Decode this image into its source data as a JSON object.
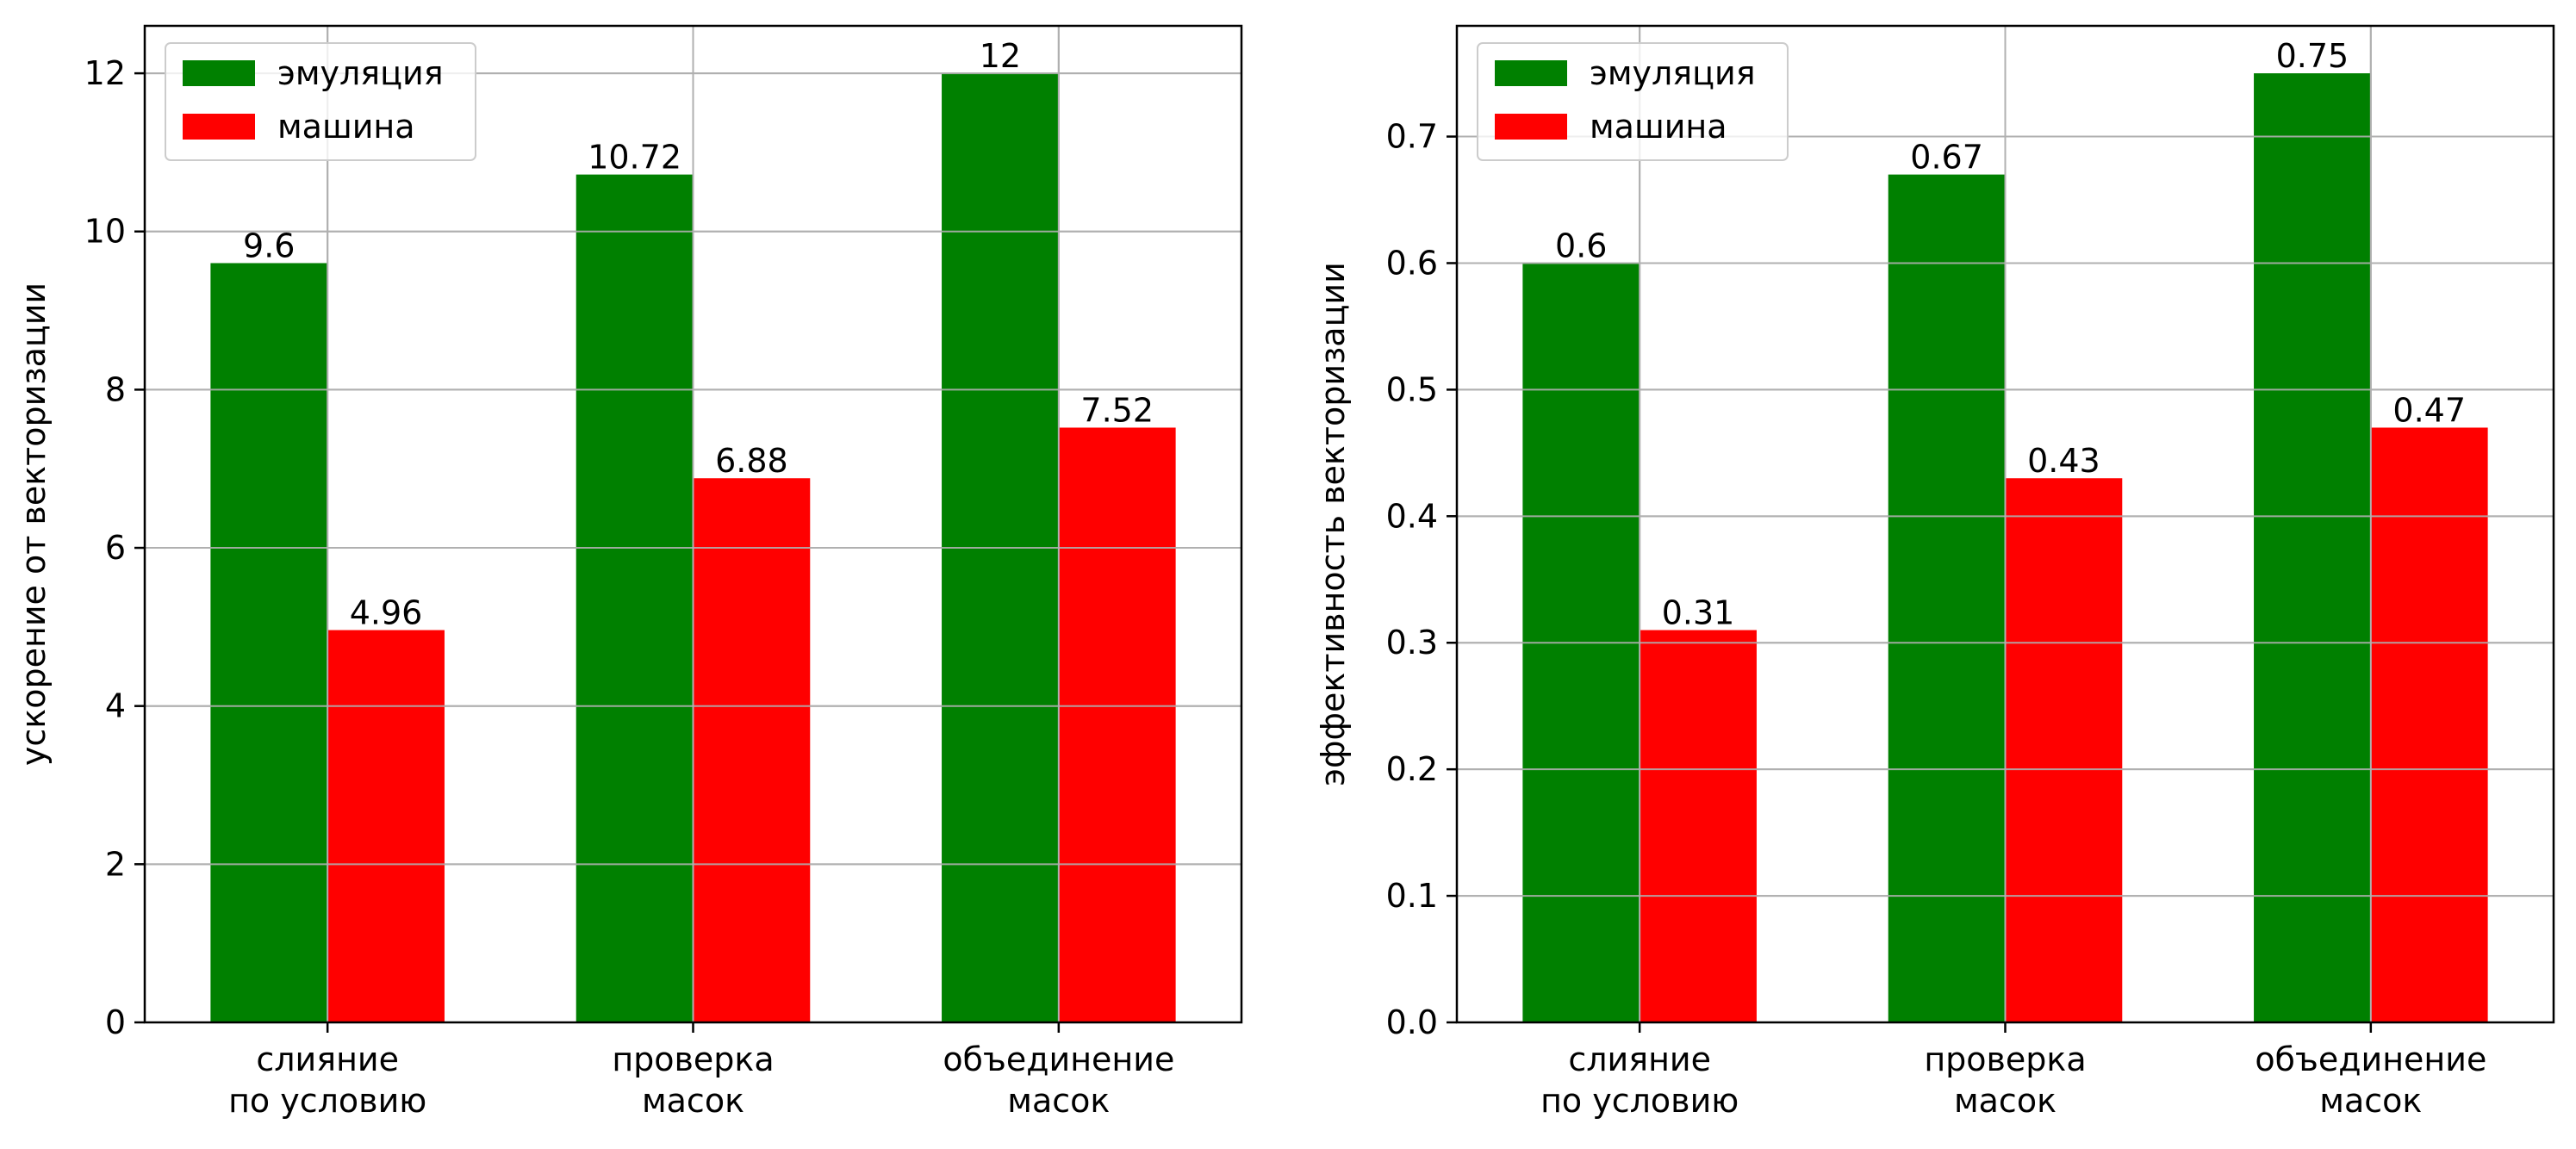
{
  "chart_data": [
    {
      "type": "bar",
      "categories": [
        "слияние\nпо условию",
        "проверка\nмасок",
        "объединение\nмасок"
      ],
      "series": [
        {
          "name": "эмуляция",
          "color": "#008000",
          "values": [
            9.6,
            10.72,
            12
          ]
        },
        {
          "name": "машина",
          "color": "#ff0000",
          "values": [
            4.96,
            6.88,
            7.52
          ]
        }
      ],
      "data_labels": [
        [
          "9.6",
          "10.72",
          "12"
        ],
        [
          "4.96",
          "6.88",
          "7.52"
        ]
      ],
      "title": "",
      "xlabel": "",
      "ylabel": "ускорение от векторизации",
      "ylim": [
        0,
        12.6
      ],
      "yticks": [
        0,
        2,
        4,
        6,
        8,
        10,
        12
      ],
      "ytick_labels": [
        "0",
        "2",
        "4",
        "6",
        "8",
        "10",
        "12"
      ],
      "grid": true,
      "legend": "top-left"
    },
    {
      "type": "bar",
      "categories": [
        "слияние\nпо условию",
        "проверка\nмасок",
        "объединение\nмасок"
      ],
      "series": [
        {
          "name": "эмуляция",
          "color": "#008000",
          "values": [
            0.6,
            0.67,
            0.75
          ]
        },
        {
          "name": "машина",
          "color": "#ff0000",
          "values": [
            0.31,
            0.43,
            0.47
          ]
        }
      ],
      "data_labels": [
        [
          "0.6",
          "0.67",
          "0.75"
        ],
        [
          "0.31",
          "0.43",
          "0.47"
        ]
      ],
      "title": "",
      "xlabel": "",
      "ylabel": "эффективность векторизации",
      "ylim": [
        0,
        0.7875
      ],
      "yticks": [
        0.0,
        0.1,
        0.2,
        0.3,
        0.4,
        0.5,
        0.6,
        0.7
      ],
      "ytick_labels": [
        "0.0",
        "0.1",
        "0.2",
        "0.3",
        "0.4",
        "0.5",
        "0.6",
        "0.7"
      ],
      "grid": true,
      "legend": "top-left"
    }
  ]
}
